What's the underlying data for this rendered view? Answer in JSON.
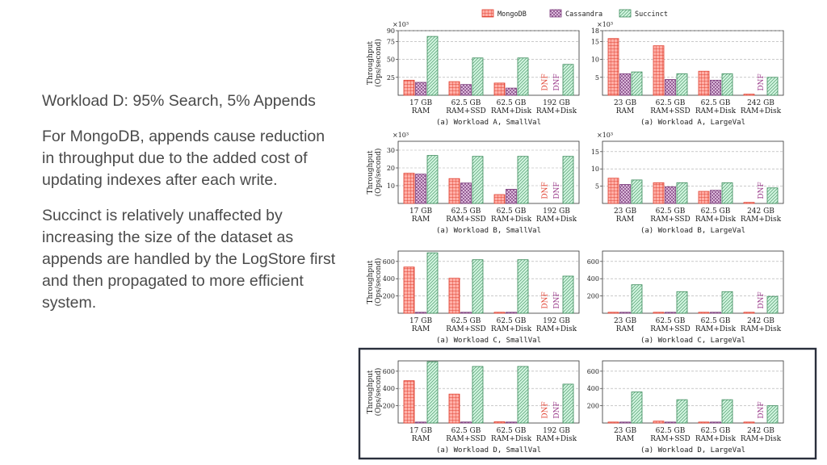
{
  "slide": {
    "heading": "Workload D: 95% Search, 5% Appends",
    "paragraph_1": "For MongoDB, appends cause reduction in throughput due to the added cost of updating indexes after each write.",
    "paragraph_2": "Succinct is relatively unaffected by increasing the size of the dataset as appends are handled by the LogStore first and then propagated to more efficient system."
  },
  "legend": [
    "MongoDB",
    "Cassandra",
    "Succinct"
  ],
  "colors": {
    "mongodb": "#ffb0a8",
    "mongodb_line": "#e04030",
    "cassandra": "#e4c8e4",
    "cassandra_line": "#7a3a7a",
    "succinct": "#c8f0d8",
    "succinct_line": "#3a8a5a",
    "dnf_red": "#e04030",
    "dnf_purple": "#9a3a8a",
    "highlight": "#2a2f3c"
  },
  "highlighted_row": 3,
  "y_axis_label_line1": "Throughput",
  "y_axis_label_line2": "(Ops/second)",
  "chart_data": [
    {
      "type": "bar",
      "title": "(a) Workload A, SmallVal",
      "multiplier": "×10³",
      "categories": [
        "17 GB|RAM",
        "62.5 GB|RAM+SSD",
        "62.5 GB|RAM+Disk",
        "192 GB|RAM+Disk"
      ],
      "series": [
        {
          "name": "MongoDB",
          "values": [
            21,
            19,
            17,
            null
          ]
        },
        {
          "name": "Cassandra",
          "values": [
            18,
            15,
            10,
            null
          ]
        },
        {
          "name": "Succinct",
          "values": [
            82,
            52,
            52,
            43
          ]
        }
      ],
      "dnf": [
        [
          3,
          "MongoDB"
        ],
        [
          3,
          "Cassandra"
        ]
      ],
      "ylim": [
        0,
        90
      ],
      "yticks": [
        25,
        50,
        75,
        90
      ]
    },
    {
      "type": "bar",
      "title": "(a) Workload A, LargeVal",
      "multiplier": "×10³",
      "categories": [
        "23 GB|RAM",
        "62.5 GB|RAM+SSD",
        "62.5 GB|RAM+Disk",
        "242 GB|RAM+Disk"
      ],
      "series": [
        {
          "name": "MongoDB",
          "values": [
            15.8,
            13.8,
            6.7,
            0.3
          ]
        },
        {
          "name": "Cassandra",
          "values": [
            6.0,
            4.4,
            4.2,
            null
          ]
        },
        {
          "name": "Succinct",
          "values": [
            6.5,
            6.0,
            6.0,
            5.0
          ]
        }
      ],
      "dnf": [
        [
          3,
          "Cassandra"
        ]
      ],
      "ylim": [
        0,
        18
      ],
      "yticks": [
        5,
        10,
        15,
        18
      ]
    },
    {
      "type": "bar",
      "title": "(a) Workload B, SmallVal",
      "multiplier": "×10³",
      "categories": [
        "17 GB|RAM",
        "62.5 GB|RAM+SSD",
        "62.5 GB|RAM+Disk",
        "192 GB|RAM+Disk"
      ],
      "series": [
        {
          "name": "MongoDB",
          "values": [
            17,
            14,
            5,
            null
          ]
        },
        {
          "name": "Cassandra",
          "values": [
            16.5,
            11.5,
            8,
            null
          ]
        },
        {
          "name": "Succinct",
          "values": [
            27,
            26.5,
            26.5,
            26.5
          ]
        }
      ],
      "dnf": [
        [
          3,
          "MongoDB"
        ],
        [
          3,
          "Cassandra"
        ]
      ],
      "ylim": [
        0,
        35
      ],
      "yticks": [
        10,
        20,
        30
      ]
    },
    {
      "type": "bar",
      "title": "(a) Workload B, LargeVal",
      "multiplier": "×10³",
      "categories": [
        "23 GB|RAM",
        "62.5 GB|RAM+SSD",
        "62.5 GB|RAM+Disk",
        "242 GB|RAM+Disk"
      ],
      "series": [
        {
          "name": "MongoDB",
          "values": [
            7.3,
            6.0,
            3.5,
            0.3
          ]
        },
        {
          "name": "Cassandra",
          "values": [
            5.5,
            4.8,
            3.8,
            null
          ]
        },
        {
          "name": "Succinct",
          "values": [
            6.8,
            6.0,
            6.0,
            4.5
          ]
        }
      ],
      "dnf": [
        [
          3,
          "Cassandra"
        ]
      ],
      "ylim": [
        0,
        18
      ],
      "yticks": [
        5,
        10,
        15
      ]
    },
    {
      "type": "bar",
      "title": "(a) Workload C, SmallVal",
      "multiplier": "",
      "categories": [
        "17 GB|RAM",
        "62.5 GB|RAM+SSD",
        "62.5 GB|RAM+Disk",
        "192 GB|RAM+Disk"
      ],
      "series": [
        {
          "name": "MongoDB",
          "values": [
            535,
            405,
            8,
            null
          ]
        },
        {
          "name": "Cassandra",
          "values": [
            10,
            8,
            5,
            null
          ]
        },
        {
          "name": "Succinct",
          "values": [
            700,
            620,
            620,
            430
          ]
        }
      ],
      "dnf": [
        [
          3,
          "MongoDB"
        ],
        [
          3,
          "Cassandra"
        ]
      ],
      "ylim": [
        0,
        720
      ],
      "yticks": [
        200,
        400,
        600
      ]
    },
    {
      "type": "bar",
      "title": "(a) Workload C, LargeVal",
      "multiplier": "",
      "categories": [
        "23 GB|RAM",
        "62.5 GB|RAM+SSD",
        "62.5 GB|RAM+Disk",
        "242 GB|RAM+Disk"
      ],
      "series": [
        {
          "name": "MongoDB",
          "values": [
            8,
            8,
            6,
            4
          ]
        },
        {
          "name": "Cassandra",
          "values": [
            6,
            6,
            4,
            null
          ]
        },
        {
          "name": "Succinct",
          "values": [
            330,
            250,
            250,
            195
          ]
        }
      ],
      "dnf": [
        [
          3,
          "Cassandra"
        ]
      ],
      "ylim": [
        0,
        720
      ],
      "yticks": [
        200,
        400,
        600
      ]
    },
    {
      "type": "bar",
      "title": "(a) Workload D, SmallVal",
      "multiplier": "",
      "categories": [
        "17 GB|RAM",
        "62.5 GB|RAM+SSD",
        "62.5 GB|RAM+Disk",
        "192 GB|RAM+Disk"
      ],
      "series": [
        {
          "name": "MongoDB",
          "values": [
            490,
            335,
            15,
            null
          ]
        },
        {
          "name": "Cassandra",
          "values": [
            10,
            12,
            5,
            null
          ]
        },
        {
          "name": "Succinct",
          "values": [
            710,
            655,
            655,
            450
          ]
        }
      ],
      "dnf": [
        [
          3,
          "MongoDB"
        ],
        [
          3,
          "Cassandra"
        ]
      ],
      "ylim": [
        0,
        720
      ],
      "yticks": [
        200,
        400,
        600
      ]
    },
    {
      "type": "bar",
      "title": "(a) Workload D, LargeVal",
      "multiplier": "",
      "categories": [
        "23 GB|RAM",
        "62.5 GB|RAM+SSD",
        "62.5 GB|RAM+Disk",
        "242 GB|RAM+Disk"
      ],
      "series": [
        {
          "name": "MongoDB",
          "values": [
            8,
            22,
            8,
            5
          ]
        },
        {
          "name": "Cassandra",
          "values": [
            6,
            6,
            4,
            null
          ]
        },
        {
          "name": "Succinct",
          "values": [
            360,
            270,
            270,
            200
          ]
        }
      ],
      "dnf": [
        [
          3,
          "Cassandra"
        ]
      ],
      "ylim": [
        0,
        720
      ],
      "yticks": [
        200,
        400,
        600
      ]
    }
  ]
}
